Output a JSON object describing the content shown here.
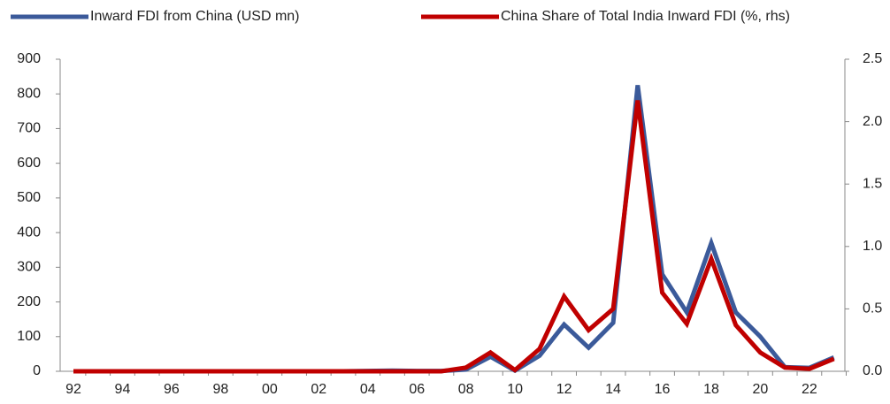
{
  "chart_data": {
    "type": "line",
    "categories": [
      "92",
      null,
      "94",
      null,
      "96",
      null,
      "98",
      null,
      "00",
      null,
      "02",
      null,
      "04",
      null,
      "06",
      null,
      "08",
      null,
      "10",
      null,
      "12",
      null,
      "14",
      null,
      "16",
      null,
      "18",
      null,
      "20",
      null,
      "22",
      null
    ],
    "series": [
      {
        "name": "Inward FDI from China (USD mn)",
        "color": "#3b5a9a",
        "values": [
          0,
          0,
          0,
          0,
          0,
          0,
          0,
          0,
          0,
          0,
          0,
          0,
          1,
          2,
          1,
          1,
          5,
          42,
          2,
          45,
          135,
          68,
          140,
          825,
          280,
          170,
          370,
          170,
          100,
          12,
          10,
          40
        ]
      },
      {
        "name": "China Share of Total India Inward FDI (%, rhs)",
        "color": "#c00000",
        "axis": "y2",
        "values": [
          0,
          0,
          0,
          0,
          0,
          0,
          0,
          0,
          0,
          0,
          0,
          0,
          0,
          0,
          0,
          0,
          0.03,
          0.15,
          0.01,
          0.18,
          0.6,
          0.33,
          0.5,
          2.17,
          0.63,
          0.38,
          0.9,
          0.37,
          0.15,
          0.03,
          0.02,
          0.1
        ]
      }
    ],
    "ylim": [
      0,
      900
    ],
    "yticks": [
      0,
      100,
      200,
      300,
      400,
      500,
      600,
      700,
      800,
      900
    ],
    "y2lim": [
      0,
      2.5
    ],
    "y2ticks": [
      {
        "value": 0,
        "label": "0.0"
      },
      0.5,
      {
        "value": 1,
        "label": "1.0"
      },
      1.5,
      {
        "value": 2,
        "label": "2.0"
      },
      2.5
    ],
    "legend": "top"
  }
}
